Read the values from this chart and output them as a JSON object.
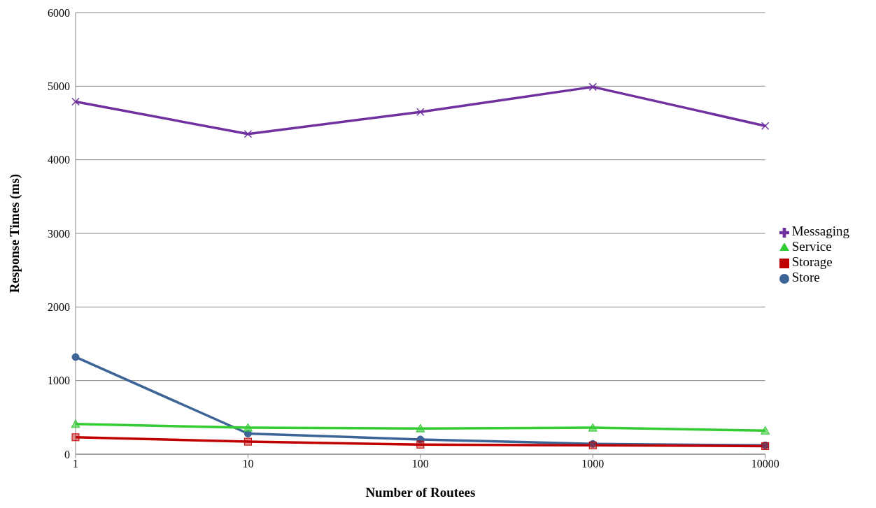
{
  "chart_data": {
    "type": "line",
    "xlabel": "Number of Routees",
    "ylabel": "Response Times (ms)",
    "categories": [
      "1",
      "10",
      "100",
      "1000",
      "10000"
    ],
    "ylim": [
      0,
      6000
    ],
    "yticks": [
      0,
      1000,
      2000,
      3000,
      4000,
      5000,
      6000
    ],
    "grid": "y",
    "legend": "right",
    "series": [
      {
        "name": "Store",
        "color": "#3c6496",
        "marker": "circle",
        "values": [
          1320,
          280,
          200,
          140,
          120
        ]
      },
      {
        "name": "Storage",
        "color": "#c00000",
        "marker": "square",
        "values": [
          230,
          170,
          130,
          120,
          110
        ]
      },
      {
        "name": "Service",
        "color": "#33cc33",
        "marker": "triangle",
        "values": [
          410,
          360,
          350,
          360,
          320
        ]
      },
      {
        "name": "Messaging",
        "color": "#7030a0",
        "marker": "cross",
        "values": [
          4790,
          4350,
          4650,
          4990,
          4460
        ]
      }
    ]
  }
}
